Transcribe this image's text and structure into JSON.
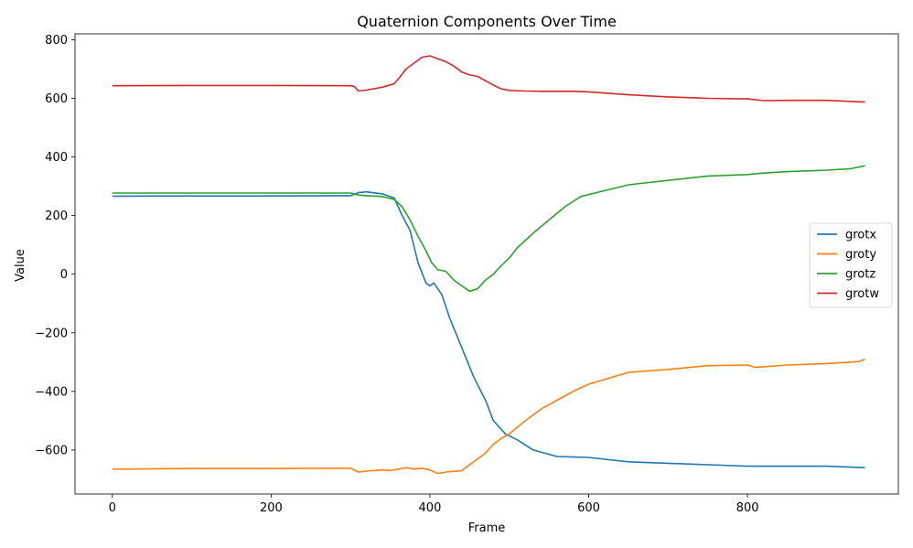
{
  "chart_data": {
    "type": "line",
    "title": "Quaternion Components Over Time",
    "xlabel": "Frame",
    "ylabel": "Value",
    "xlim": [
      -47,
      990
    ],
    "ylim": [
      -750,
      820
    ],
    "xticks": [
      0,
      200,
      400,
      600,
      800
    ],
    "yticks": [
      800,
      600,
      400,
      200,
      0,
      -200,
      -400,
      -600
    ],
    "ytick_labels": [
      "800",
      "600",
      "400",
      "200",
      "0",
      "−200",
      "−400",
      "−600"
    ],
    "legend_position": "center-right",
    "grid": false,
    "series": [
      {
        "name": "grotx",
        "color": "#1f77b4",
        "points": [
          [
            0,
            266
          ],
          [
            100,
            267
          ],
          [
            200,
            267
          ],
          [
            300,
            268
          ],
          [
            310,
            278
          ],
          [
            320,
            281
          ],
          [
            340,
            274
          ],
          [
            355,
            260
          ],
          [
            365,
            200
          ],
          [
            375,
            150
          ],
          [
            385,
            40
          ],
          [
            395,
            -30
          ],
          [
            400,
            -40
          ],
          [
            405,
            -30
          ],
          [
            415,
            -70
          ],
          [
            425,
            -150
          ],
          [
            440,
            -250
          ],
          [
            455,
            -350
          ],
          [
            470,
            -430
          ],
          [
            480,
            -500
          ],
          [
            495,
            -545
          ],
          [
            510,
            -565
          ],
          [
            530,
            -600
          ],
          [
            560,
            -622
          ],
          [
            600,
            -625
          ],
          [
            650,
            -640
          ],
          [
            700,
            -645
          ],
          [
            750,
            -650
          ],
          [
            800,
            -655
          ],
          [
            850,
            -655
          ],
          [
            900,
            -655
          ],
          [
            948,
            -660
          ]
        ]
      },
      {
        "name": "groty",
        "color": "#ff7f0e",
        "points": [
          [
            0,
            -665
          ],
          [
            100,
            -663
          ],
          [
            200,
            -663
          ],
          [
            300,
            -662
          ],
          [
            310,
            -675
          ],
          [
            320,
            -672
          ],
          [
            340,
            -668
          ],
          [
            350,
            -670
          ],
          [
            360,
            -665
          ],
          [
            370,
            -660
          ],
          [
            380,
            -665
          ],
          [
            390,
            -662
          ],
          [
            400,
            -668
          ],
          [
            410,
            -680
          ],
          [
            420,
            -675
          ],
          [
            440,
            -670
          ],
          [
            450,
            -650
          ],
          [
            460,
            -630
          ],
          [
            470,
            -610
          ],
          [
            480,
            -580
          ],
          [
            490,
            -560
          ],
          [
            500,
            -545
          ],
          [
            520,
            -500
          ],
          [
            540,
            -460
          ],
          [
            560,
            -430
          ],
          [
            580,
            -400
          ],
          [
            600,
            -375
          ],
          [
            650,
            -335
          ],
          [
            700,
            -325
          ],
          [
            750,
            -312
          ],
          [
            800,
            -310
          ],
          [
            810,
            -318
          ],
          [
            850,
            -310
          ],
          [
            900,
            -305
          ],
          [
            940,
            -298
          ],
          [
            948,
            -290
          ]
        ]
      },
      {
        "name": "grotz",
        "color": "#2ca02c",
        "points": [
          [
            0,
            277
          ],
          [
            100,
            277
          ],
          [
            200,
            277
          ],
          [
            300,
            277
          ],
          [
            310,
            270
          ],
          [
            320,
            268
          ],
          [
            340,
            265
          ],
          [
            355,
            255
          ],
          [
            365,
            230
          ],
          [
            375,
            185
          ],
          [
            385,
            130
          ],
          [
            395,
            80
          ],
          [
            402,
            40
          ],
          [
            410,
            15
          ],
          [
            420,
            10
          ],
          [
            430,
            -20
          ],
          [
            440,
            -40
          ],
          [
            450,
            -58
          ],
          [
            460,
            -50
          ],
          [
            470,
            -20
          ],
          [
            480,
            0
          ],
          [
            490,
            30
          ],
          [
            500,
            55
          ],
          [
            510,
            90
          ],
          [
            530,
            140
          ],
          [
            550,
            185
          ],
          [
            570,
            230
          ],
          [
            590,
            265
          ],
          [
            620,
            285
          ],
          [
            650,
            305
          ],
          [
            700,
            320
          ],
          [
            750,
            335
          ],
          [
            800,
            340
          ],
          [
            820,
            345
          ],
          [
            850,
            350
          ],
          [
            900,
            355
          ],
          [
            930,
            360
          ],
          [
            948,
            370
          ]
        ]
      },
      {
        "name": "grotw",
        "color": "#d62728",
        "points": [
          [
            0,
            643
          ],
          [
            100,
            644
          ],
          [
            200,
            644
          ],
          [
            300,
            643
          ],
          [
            305,
            640
          ],
          [
            310,
            625
          ],
          [
            320,
            628
          ],
          [
            340,
            638
          ],
          [
            355,
            650
          ],
          [
            362,
            672
          ],
          [
            370,
            700
          ],
          [
            380,
            720
          ],
          [
            390,
            740
          ],
          [
            400,
            745
          ],
          [
            410,
            735
          ],
          [
            420,
            725
          ],
          [
            430,
            710
          ],
          [
            440,
            690
          ],
          [
            450,
            680
          ],
          [
            460,
            675
          ],
          [
            470,
            660
          ],
          [
            480,
            645
          ],
          [
            490,
            632
          ],
          [
            500,
            627
          ],
          [
            520,
            625
          ],
          [
            540,
            624
          ],
          [
            560,
            624
          ],
          [
            580,
            624
          ],
          [
            600,
            622
          ],
          [
            650,
            612
          ],
          [
            700,
            605
          ],
          [
            750,
            600
          ],
          [
            800,
            598
          ],
          [
            820,
            592
          ],
          [
            850,
            593
          ],
          [
            900,
            593
          ],
          [
            948,
            587
          ]
        ]
      }
    ]
  }
}
